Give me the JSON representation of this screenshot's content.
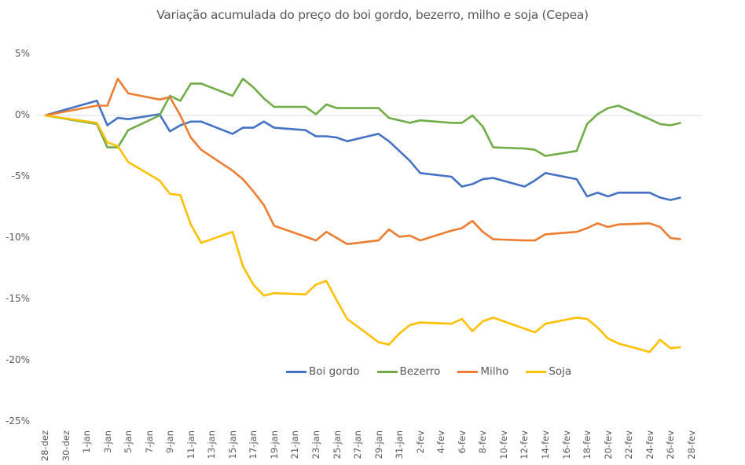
{
  "chart_data": {
    "type": "line",
    "title": "Variação acumulada do preço do boi gordo, bezerro, milho e soja (Cepea)",
    "xlabel": "",
    "ylabel": "",
    "ylim": [
      -25,
      5
    ],
    "yticks": [
      "5%",
      "0%",
      "-5%",
      "-10%",
      "-15%",
      "-20%",
      "-25%"
    ],
    "ytick_values": [
      5,
      0,
      -5,
      -10,
      -15,
      -20,
      -25
    ],
    "xticks": [
      "28-dez",
      "30-dez",
      "1-jan",
      "3-jan",
      "5-jan",
      "7-jan",
      "9-jan",
      "11-jan",
      "13-jan",
      "15-jan",
      "17-jan",
      "19-jan",
      "21-jan",
      "23-jan",
      "25-jan",
      "27-jan",
      "29-jan",
      "31-jan",
      "2-fev",
      "4-fev",
      "6-fev",
      "8-fev",
      "10-fev",
      "12-fev",
      "14-fev",
      "16-fev",
      "18-fev",
      "20-fev",
      "22-fev",
      "24-fev",
      "26-fev",
      "28-fev"
    ],
    "x_note": "x values are day offsets from 28-dez",
    "grid": false,
    "zero_line": true,
    "legend_position": "inside-bottom-center",
    "series": [
      {
        "name": "Boi gordo",
        "color": "#4472C4",
        "points": [
          [
            0,
            0
          ],
          [
            5,
            1.2
          ],
          [
            6,
            -0.8
          ],
          [
            7,
            -0.2
          ],
          [
            8,
            -0.3
          ],
          [
            11,
            0.1
          ],
          [
            12,
            -1.3
          ],
          [
            13,
            -0.8
          ],
          [
            14,
            -0.5
          ],
          [
            15,
            -0.5
          ],
          [
            18,
            -1.5
          ],
          [
            19,
            -1.0
          ],
          [
            20,
            -1.0
          ],
          [
            21,
            -0.5
          ],
          [
            22,
            -1.0
          ],
          [
            25,
            -1.2
          ],
          [
            26,
            -1.7
          ],
          [
            27,
            -1.7
          ],
          [
            28,
            -1.8
          ],
          [
            29,
            -2.1
          ],
          [
            32,
            -1.5
          ],
          [
            33,
            -2.1
          ],
          [
            34,
            -2.9
          ],
          [
            35,
            -3.7
          ],
          [
            36,
            -4.7
          ],
          [
            39,
            -5.0
          ],
          [
            40,
            -5.8
          ],
          [
            41,
            -5.6
          ],
          [
            42,
            -5.2
          ],
          [
            43,
            -5.1
          ],
          [
            46,
            -5.8
          ],
          [
            47,
            -5.3
          ],
          [
            48,
            -4.7
          ],
          [
            51,
            -5.2
          ],
          [
            52,
            -6.6
          ],
          [
            53,
            -6.3
          ],
          [
            54,
            -6.6
          ],
          [
            55,
            -6.3
          ],
          [
            58,
            -6.3
          ],
          [
            59,
            -6.7
          ],
          [
            60,
            -6.9
          ],
          [
            61,
            -6.7
          ]
        ]
      },
      {
        "name": "Bezerro",
        "color": "#70AD47",
        "points": [
          [
            0,
            0
          ],
          [
            5,
            -0.7
          ],
          [
            6,
            -2.6
          ],
          [
            7,
            -2.6
          ],
          [
            8,
            -1.2
          ],
          [
            11,
            0.0
          ],
          [
            12,
            1.6
          ],
          [
            13,
            1.2
          ],
          [
            14,
            2.6
          ],
          [
            15,
            2.6
          ],
          [
            18,
            1.6
          ],
          [
            19,
            3.0
          ],
          [
            20,
            2.3
          ],
          [
            21,
            1.4
          ],
          [
            22,
            0.7
          ],
          [
            25,
            0.7
          ],
          [
            26,
            0.1
          ],
          [
            27,
            0.9
          ],
          [
            28,
            0.6
          ],
          [
            29,
            0.6
          ],
          [
            32,
            0.6
          ],
          [
            33,
            -0.2
          ],
          [
            34,
            -0.4
          ],
          [
            35,
            -0.6
          ],
          [
            36,
            -0.4
          ],
          [
            39,
            -0.6
          ],
          [
            40,
            -0.6
          ],
          [
            41,
            0.0
          ],
          [
            42,
            -0.9
          ],
          [
            43,
            -2.6
          ],
          [
            46,
            -2.7
          ],
          [
            47,
            -2.8
          ],
          [
            48,
            -3.3
          ],
          [
            51,
            -2.9
          ],
          [
            52,
            -0.7
          ],
          [
            53,
            0.1
          ],
          [
            54,
            0.6
          ],
          [
            55,
            0.8
          ],
          [
            58,
            -0.3
          ],
          [
            59,
            -0.7
          ],
          [
            60,
            -0.8
          ],
          [
            61,
            -0.6
          ]
        ]
      },
      {
        "name": "Milho",
        "color": "#ED7D31",
        "points": [
          [
            0,
            0
          ],
          [
            5,
            0.8
          ],
          [
            6,
            0.8
          ],
          [
            7,
            3.0
          ],
          [
            8,
            1.8
          ],
          [
            11,
            1.3
          ],
          [
            12,
            1.5
          ],
          [
            13,
            0.0
          ],
          [
            14,
            -1.8
          ],
          [
            15,
            -2.8
          ],
          [
            18,
            -4.5
          ],
          [
            19,
            -5.2
          ],
          [
            20,
            -6.2
          ],
          [
            21,
            -7.3
          ],
          [
            22,
            -9.0
          ],
          [
            25,
            -9.9
          ],
          [
            26,
            -10.2
          ],
          [
            27,
            -9.5
          ],
          [
            28,
            -10.0
          ],
          [
            29,
            -10.5
          ],
          [
            32,
            -10.2
          ],
          [
            33,
            -9.3
          ],
          [
            34,
            -9.9
          ],
          [
            35,
            -9.8
          ],
          [
            36,
            -10.2
          ],
          [
            39,
            -9.4
          ],
          [
            40,
            -9.2
          ],
          [
            41,
            -8.6
          ],
          [
            42,
            -9.5
          ],
          [
            43,
            -10.1
          ],
          [
            46,
            -10.2
          ],
          [
            47,
            -10.2
          ],
          [
            48,
            -9.7
          ],
          [
            51,
            -9.5
          ],
          [
            52,
            -9.2
          ],
          [
            53,
            -8.8
          ],
          [
            54,
            -9.1
          ],
          [
            55,
            -8.9
          ],
          [
            58,
            -8.8
          ],
          [
            59,
            -9.1
          ],
          [
            60,
            -10.0
          ],
          [
            61,
            -10.1
          ]
        ]
      },
      {
        "name": "Soja",
        "color": "#FFC000",
        "points": [
          [
            0,
            0
          ],
          [
            5,
            -0.6
          ],
          [
            6,
            -2.2
          ],
          [
            7,
            -2.5
          ],
          [
            8,
            -3.8
          ],
          [
            11,
            -5.3
          ],
          [
            12,
            -6.4
          ],
          [
            13,
            -6.5
          ],
          [
            14,
            -8.9
          ],
          [
            15,
            -10.4
          ],
          [
            18,
            -9.5
          ],
          [
            19,
            -12.3
          ],
          [
            20,
            -13.8
          ],
          [
            21,
            -14.7
          ],
          [
            22,
            -14.5
          ],
          [
            25,
            -14.6
          ],
          [
            26,
            -13.8
          ],
          [
            27,
            -13.5
          ],
          [
            28,
            -15.1
          ],
          [
            29,
            -16.6
          ],
          [
            32,
            -18.5
          ],
          [
            33,
            -18.7
          ],
          [
            34,
            -17.8
          ],
          [
            35,
            -17.1
          ],
          [
            36,
            -16.9
          ],
          [
            39,
            -17.0
          ],
          [
            40,
            -16.6
          ],
          [
            41,
            -17.6
          ],
          [
            42,
            -16.8
          ],
          [
            43,
            -16.5
          ],
          [
            46,
            -17.4
          ],
          [
            47,
            -17.7
          ],
          [
            48,
            -17.0
          ],
          [
            51,
            -16.5
          ],
          [
            52,
            -16.6
          ],
          [
            53,
            -17.3
          ],
          [
            54,
            -18.2
          ],
          [
            55,
            -18.6
          ],
          [
            58,
            -19.3
          ],
          [
            59,
            -18.3
          ],
          [
            60,
            -19.0
          ],
          [
            61,
            -18.9
          ]
        ]
      }
    ]
  }
}
